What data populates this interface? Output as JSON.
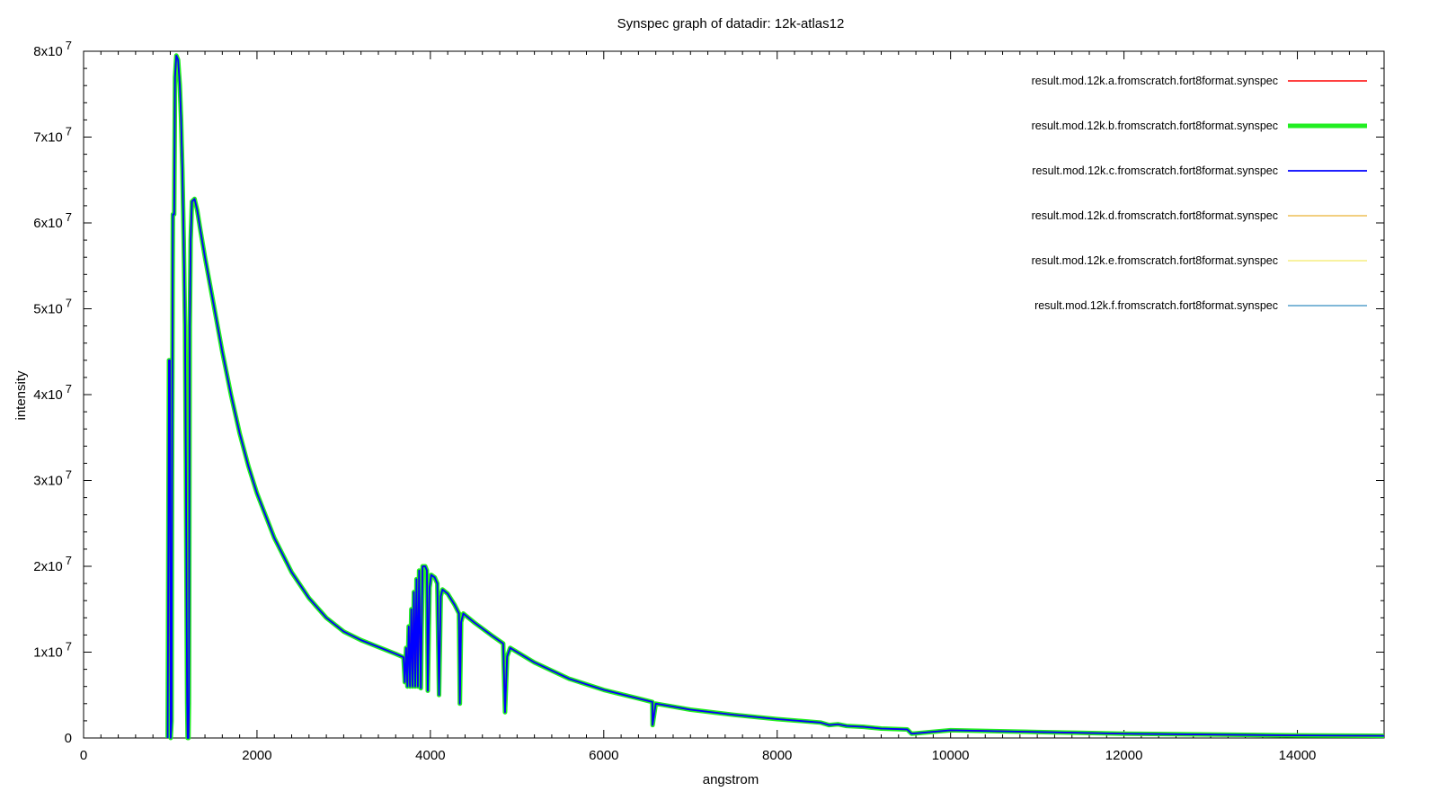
{
  "chart_data": {
    "type": "line",
    "title": "Synspec graph of datadir: 12k-atlas12",
    "xlabel": "angstrom",
    "ylabel": "intensity",
    "xlim": [
      0,
      15000
    ],
    "ylim": [
      0,
      80000000
    ],
    "x_ticks": [
      0,
      2000,
      4000,
      6000,
      8000,
      10000,
      12000,
      14000
    ],
    "x_tick_labels": [
      "0",
      "2000",
      "4000",
      "6000",
      "8000",
      "10000",
      "12000",
      "14000"
    ],
    "y_ticks": [
      0,
      10000000,
      20000000,
      30000000,
      40000000,
      50000000,
      60000000,
      70000000,
      80000000
    ],
    "y_tick_labels": [
      {
        "mantissa": "0",
        "exp": ""
      },
      {
        "mantissa": "1x10",
        "exp": "7"
      },
      {
        "mantissa": "2x10",
        "exp": "7"
      },
      {
        "mantissa": "3x10",
        "exp": "7"
      },
      {
        "mantissa": "4x10",
        "exp": "7"
      },
      {
        "mantissa": "5x10",
        "exp": "7"
      },
      {
        "mantissa": "6x10",
        "exp": "7"
      },
      {
        "mantissa": "7x10",
        "exp": "7"
      },
      {
        "mantissa": "8x10",
        "exp": "7"
      }
    ],
    "grid": false,
    "legend_position": "top-right",
    "series": [
      {
        "name": "result.mod.12k.a.fromscratch.fort8format.synspec",
        "color": "#ff0000",
        "width": 1.6
      },
      {
        "name": "result.mod.12k.b.fromscratch.fort8format.synspec",
        "color": "#22ee22",
        "width": 5
      },
      {
        "name": "result.mod.12k.c.fromscratch.fort8format.synspec",
        "color": "#0000ff",
        "width": 1.8
      },
      {
        "name": "result.mod.12k.d.fromscratch.fort8format.synspec",
        "color": "#e69f00",
        "width": 1
      },
      {
        "name": "result.mod.12k.e.fromscratch.fort8format.synspec",
        "color": "#f0e442",
        "width": 1
      },
      {
        "name": "result.mod.12k.f.fromscratch.fort8format.synspec",
        "color": "#0072b2",
        "width": 1
      }
    ],
    "points": [
      [
        970,
        0
      ],
      [
        985,
        44000000
      ],
      [
        995,
        44000000
      ],
      [
        1000,
        16000000
      ],
      [
        1005,
        0
      ],
      [
        1015,
        2000000
      ],
      [
        1020,
        30000000
      ],
      [
        1030,
        61000000
      ],
      [
        1045,
        61000000
      ],
      [
        1055,
        77000000
      ],
      [
        1070,
        79500000
      ],
      [
        1090,
        79000000
      ],
      [
        1110,
        76000000
      ],
      [
        1125,
        72000000
      ],
      [
        1140,
        66000000
      ],
      [
        1155,
        58000000
      ],
      [
        1170,
        48000000
      ],
      [
        1180,
        32000000
      ],
      [
        1190,
        12000000
      ],
      [
        1195,
        4000000
      ],
      [
        1200,
        0
      ],
      [
        1210,
        0
      ],
      [
        1215,
        4000000
      ],
      [
        1225,
        48000000
      ],
      [
        1235,
        58000000
      ],
      [
        1250,
        62500000
      ],
      [
        1280,
        62800000
      ],
      [
        1310,
        61500000
      ],
      [
        1350,
        59000000
      ],
      [
        1400,
        56000000
      ],
      [
        1500,
        50500000
      ],
      [
        1600,
        45000000
      ],
      [
        1700,
        40000000
      ],
      [
        1800,
        35500000
      ],
      [
        1900,
        31700000
      ],
      [
        2000,
        28500000
      ],
      [
        2200,
        23300000
      ],
      [
        2400,
        19300000
      ],
      [
        2600,
        16300000
      ],
      [
        2800,
        14000000
      ],
      [
        3000,
        12400000
      ],
      [
        3200,
        11400000
      ],
      [
        3400,
        10600000
      ],
      [
        3600,
        9800000
      ],
      [
        3690,
        9400000
      ],
      [
        3705,
        6500000
      ],
      [
        3720,
        10500000
      ],
      [
        3735,
        6000000
      ],
      [
        3750,
        13000000
      ],
      [
        3765,
        6000000
      ],
      [
        3780,
        15000000
      ],
      [
        3795,
        6000000
      ],
      [
        3810,
        17000000
      ],
      [
        3825,
        6000000
      ],
      [
        3840,
        18500000
      ],
      [
        3855,
        6000000
      ],
      [
        3870,
        19500000
      ],
      [
        3890,
        5800000
      ],
      [
        3910,
        20000000
      ],
      [
        3940,
        20000000
      ],
      [
        3960,
        19500000
      ],
      [
        3970,
        5500000
      ],
      [
        3990,
        17500000
      ],
      [
        4010,
        19000000
      ],
      [
        4050,
        18700000
      ],
      [
        4080,
        18000000
      ],
      [
        4100,
        5000000
      ],
      [
        4120,
        16500000
      ],
      [
        4140,
        17300000
      ],
      [
        4200,
        16800000
      ],
      [
        4280,
        15500000
      ],
      [
        4330,
        14500000
      ],
      [
        4340,
        4000000
      ],
      [
        4355,
        13500000
      ],
      [
        4380,
        14500000
      ],
      [
        4500,
        13500000
      ],
      [
        4700,
        12000000
      ],
      [
        4840,
        11000000
      ],
      [
        4861,
        3000000
      ],
      [
        4885,
        9500000
      ],
      [
        4920,
        10500000
      ],
      [
        5200,
        8800000
      ],
      [
        5600,
        6900000
      ],
      [
        6000,
        5600000
      ],
      [
        6400,
        4600000
      ],
      [
        6560,
        4200000
      ],
      [
        6563,
        1500000
      ],
      [
        6600,
        4000000
      ],
      [
        7000,
        3300000
      ],
      [
        7500,
        2700000
      ],
      [
        8000,
        2200000
      ],
      [
        8500,
        1800000
      ],
      [
        8600,
        1500000
      ],
      [
        8700,
        1600000
      ],
      [
        8800,
        1400000
      ],
      [
        9000,
        1300000
      ],
      [
        9200,
        1100000
      ],
      [
        9500,
        1000000
      ],
      [
        9550,
        500000
      ],
      [
        10000,
        900000
      ],
      [
        10500,
        800000
      ],
      [
        11000,
        700000
      ],
      [
        11500,
        600000
      ],
      [
        12000,
        500000
      ],
      [
        13000,
        400000
      ],
      [
        14000,
        300000
      ],
      [
        15000,
        250000
      ]
    ]
  }
}
